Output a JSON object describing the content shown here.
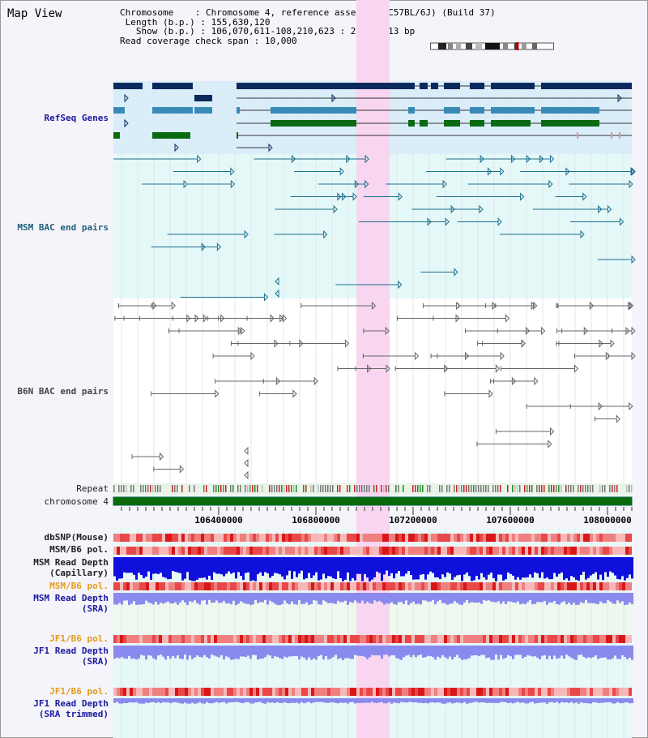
{
  "view_title": "Map View",
  "info": {
    "chromosome_key": "Chromosome",
    "chromosome_value": "Chromosome 4, reference assembly (C57BL/6J) (Build 37)",
    "length_key": "Length (b.p.)",
    "length_value": "155,630,120",
    "show_key": "Show (b.p.)",
    "show_value": "106,070,611-108,210,623 : 2,140,013 bp",
    "coverage_key": "Read coverage check span",
    "coverage_value": "10,000"
  },
  "tracks": {
    "refseq": "RefSeq Genes",
    "msm_bac": "MSM BAC end pairs",
    "b6n_bac": "B6N BAC end pairs",
    "repeat": "Repeat",
    "chromosome": "chromosome 4",
    "dbsnp": "dbSNP(Mouse)",
    "msm_b6_pol_1": "MSM/B6 pol.",
    "msm_read_depth_cap_1": "MSM Read Depth",
    "msm_read_depth_cap_2": "(Capillary)",
    "msm_b6_pol_2": "MSM/B6 pol.",
    "msm_read_depth_sra_1": "MSM Read Depth",
    "msm_read_depth_sra_2": "(SRA)",
    "jf1_b6_pol_1": "JF1/B6 pol.",
    "jf1_read_depth_1": "JF1 Read Depth",
    "jf1_read_depth_2": "(SRA)",
    "jf1_b6_pol_2": "JF1/B6 pol.",
    "jf1_read_depth_trim_1": "JF1 Read Depth",
    "jf1_read_depth_trim_2": "(SRA trimmed)"
  },
  "axis_ticks": [
    "106400000",
    "106800000",
    "107200000",
    "107600000",
    "108000000"
  ],
  "colors": {
    "refseq_dark": "#0a2a5e",
    "refseq_mid": "#3a8ab8",
    "refseq_green": "#0a6a12",
    "highlight": "#f8d6f0",
    "msm_bac_line": "#1e6e8e",
    "b6n_bac_line": "#666666",
    "chromosome_bar": "#0a6a0a",
    "depth_dark": "#1010dd",
    "depth_light": "#8a8aee"
  }
}
